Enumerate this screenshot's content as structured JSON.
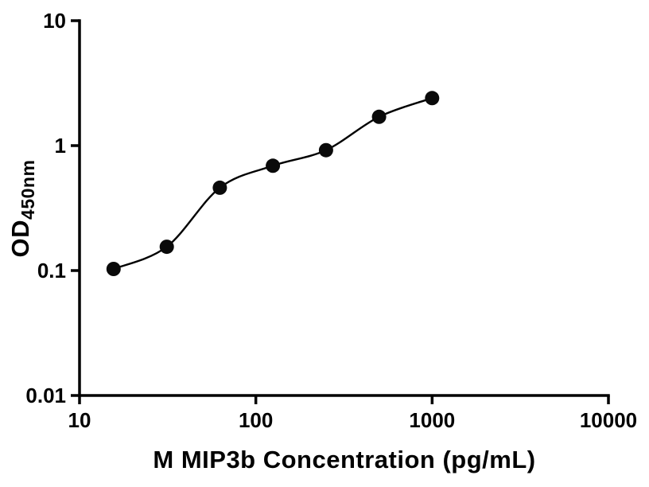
{
  "figure": {
    "background": "#ffffff",
    "axis_color": "#000000",
    "marker_color": "#0a0a0a",
    "line_color": "#000000"
  },
  "chart_data": {
    "type": "scatter",
    "title": "",
    "xlabel": "M MIP3b Concentration (pg/mL)",
    "ylabel_main": "OD",
    "ylabel_sub": "450nm",
    "x": [
      15.6,
      31.25,
      62.5,
      125,
      250,
      500,
      1000
    ],
    "y": [
      0.103,
      0.155,
      0.46,
      0.69,
      0.92,
      1.7,
      2.4
    ],
    "x_scale": "log",
    "y_scale": "log",
    "xlim": [
      10,
      10000
    ],
    "ylim": [
      0.01,
      10
    ],
    "x_ticks": [
      10,
      100,
      1000,
      10000
    ],
    "x_tick_labels": [
      "10",
      "100",
      "1000",
      "10000"
    ],
    "y_ticks": [
      10,
      1,
      0.1,
      0.01
    ],
    "y_tick_labels": [
      "10",
      "1",
      "0.1",
      "0.01"
    ],
    "grid": false,
    "legend": false,
    "fit_line": true,
    "marker_size_px": 9
  }
}
